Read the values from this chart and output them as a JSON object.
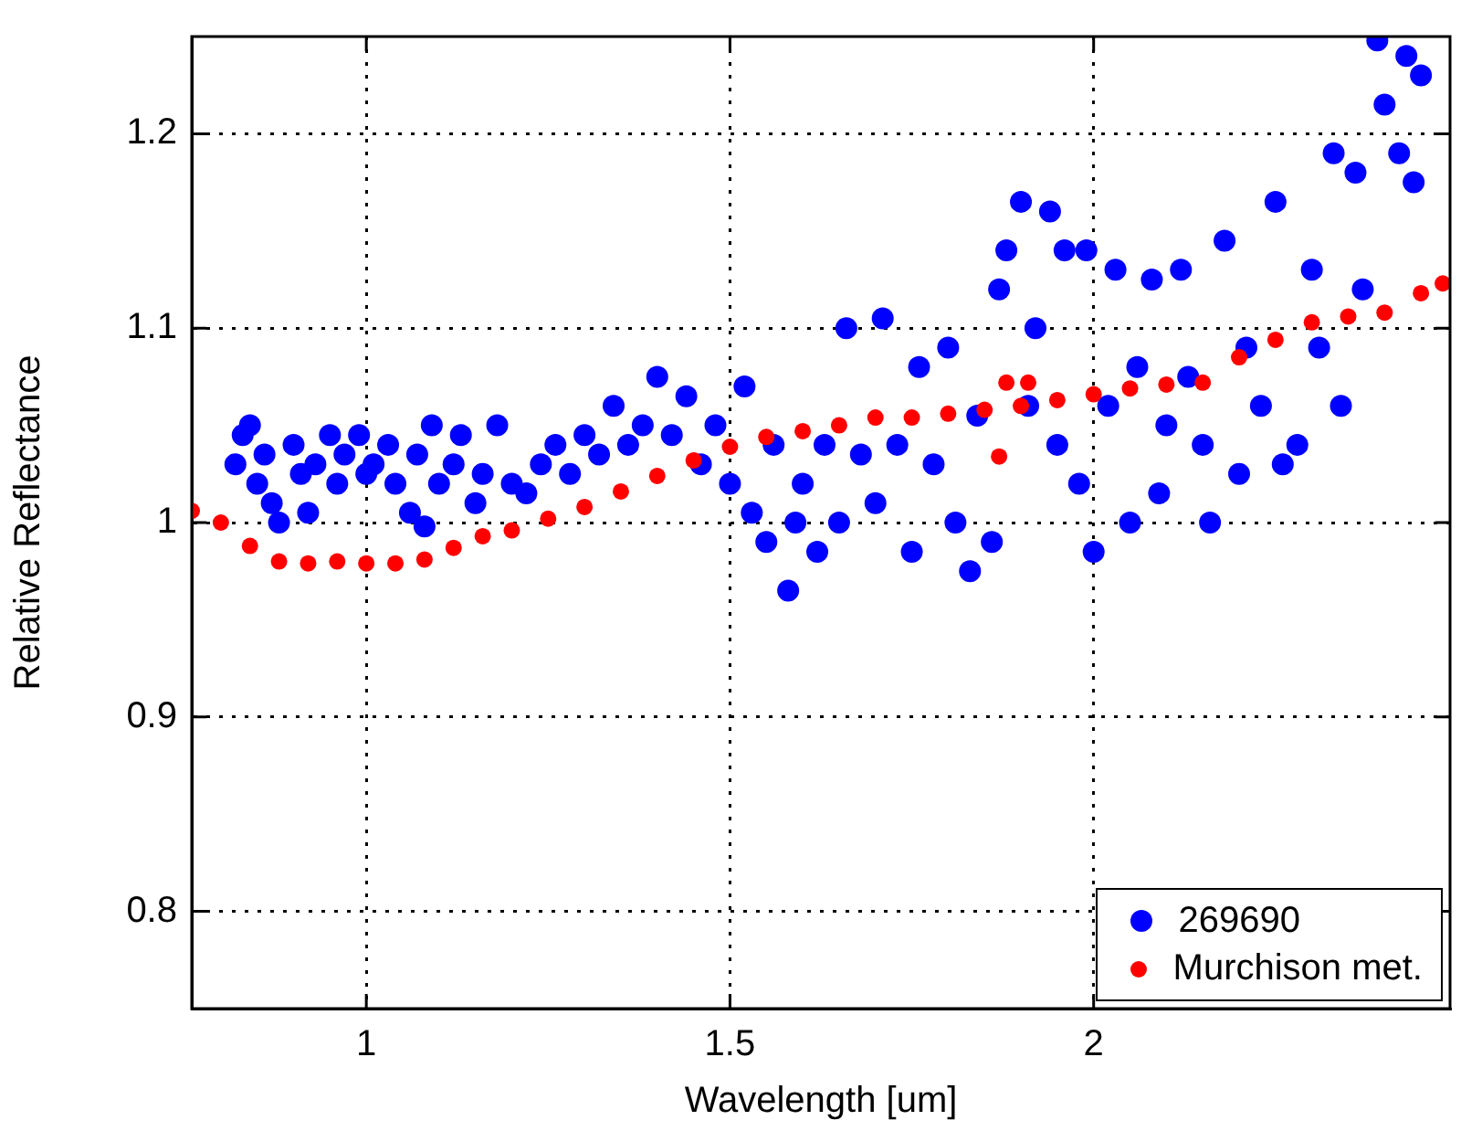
{
  "chart_data": {
    "type": "scatter",
    "xlabel": "Wavelength [um]",
    "ylabel": "Relative Reflectance",
    "xlim": [
      0.76,
      2.49
    ],
    "xticks": [
      1,
      1.5,
      2
    ],
    "ylim": [
      0.75,
      1.25
    ],
    "yticks": [
      0.8,
      0.9,
      1,
      1.1,
      1.2
    ],
    "grid": true,
    "legend": "bottom right",
    "marker": "circle",
    "series": [
      {
        "name": "269690",
        "color": "#0000ff",
        "x": [
          0.82,
          0.83,
          0.84,
          0.85,
          0.86,
          0.87,
          0.88,
          0.9,
          0.91,
          0.92,
          0.93,
          0.95,
          0.96,
          0.97,
          0.99,
          1.0,
          1.01,
          1.03,
          1.04,
          1.06,
          1.07,
          1.08,
          1.09,
          1.1,
          1.12,
          1.13,
          1.15,
          1.16,
          1.18,
          1.2,
          1.22,
          1.24,
          1.26,
          1.28,
          1.3,
          1.32,
          1.34,
          1.36,
          1.38,
          1.4,
          1.42,
          1.44,
          1.46,
          1.48,
          1.5,
          1.52,
          1.53,
          1.55,
          1.56,
          1.58,
          1.59,
          1.6,
          1.62,
          1.63,
          1.65,
          1.66,
          1.68,
          1.7,
          1.71,
          1.73,
          1.75,
          1.76,
          1.78,
          1.8,
          1.81,
          1.83,
          1.84,
          1.86,
          1.87,
          1.88,
          1.9,
          1.91,
          1.92,
          1.94,
          1.95,
          1.96,
          1.98,
          1.99,
          2.0,
          2.02,
          2.03,
          2.05,
          2.06,
          2.08,
          2.09,
          2.1,
          2.12,
          2.13,
          2.15,
          2.16,
          2.18,
          2.2,
          2.21,
          2.23,
          2.25,
          2.26,
          2.28,
          2.3,
          2.31,
          2.33,
          2.34,
          2.36,
          2.37,
          2.39,
          2.4,
          2.42,
          2.43,
          2.44,
          2.45
        ],
        "values": [
          1.03,
          1.045,
          1.05,
          1.02,
          1.035,
          1.01,
          1.0,
          1.04,
          1.025,
          1.005,
          1.03,
          1.045,
          1.02,
          1.035,
          1.045,
          1.025,
          1.03,
          1.04,
          1.02,
          1.005,
          1.035,
          0.998,
          1.05,
          1.02,
          1.03,
          1.045,
          1.01,
          1.025,
          1.05,
          1.02,
          1.015,
          1.03,
          1.04,
          1.025,
          1.045,
          1.035,
          1.06,
          1.04,
          1.05,
          1.075,
          1.045,
          1.065,
          1.03,
          1.05,
          1.02,
          1.07,
          1.005,
          0.99,
          1.04,
          0.965,
          1.0,
          1.02,
          0.985,
          1.04,
          1.0,
          1.1,
          1.035,
          1.01,
          1.105,
          1.04,
          0.985,
          1.08,
          1.03,
          1.09,
          1.0,
          0.975,
          1.055,
          0.99,
          1.12,
          1.14,
          1.165,
          1.06,
          1.1,
          1.16,
          1.04,
          1.14,
          1.02,
          1.14,
          0.985,
          1.06,
          1.13,
          1.0,
          1.08,
          1.125,
          1.015,
          1.05,
          1.13,
          1.075,
          1.04,
          1.0,
          1.145,
          1.025,
          1.09,
          1.06,
          1.165,
          1.03,
          1.04,
          1.13,
          1.09,
          1.19,
          1.06,
          1.18,
          1.12,
          1.248,
          1.215,
          1.19,
          1.24,
          1.175,
          1.23
        ]
      },
      {
        "name": "Murchison met.",
        "color": "#ff0000",
        "x": [
          0.76,
          0.8,
          0.84,
          0.88,
          0.92,
          0.96,
          1.0,
          1.04,
          1.08,
          1.12,
          1.16,
          1.2,
          1.25,
          1.3,
          1.35,
          1.4,
          1.45,
          1.5,
          1.55,
          1.6,
          1.65,
          1.7,
          1.75,
          1.8,
          1.85,
          1.87,
          1.88,
          1.9,
          1.91,
          1.95,
          2.0,
          2.05,
          2.1,
          2.15,
          2.2,
          2.25,
          2.3,
          2.35,
          2.4,
          2.45,
          2.48
        ],
        "values": [
          1.006,
          1.0,
          0.988,
          0.98,
          0.979,
          0.98,
          0.979,
          0.979,
          0.981,
          0.987,
          0.993,
          0.996,
          1.002,
          1.008,
          1.016,
          1.024,
          1.032,
          1.039,
          1.044,
          1.047,
          1.05,
          1.054,
          1.054,
          1.056,
          1.058,
          1.034,
          1.072,
          1.06,
          1.072,
          1.063,
          1.066,
          1.069,
          1.071,
          1.072,
          1.085,
          1.094,
          1.103,
          1.106,
          1.108,
          1.118,
          1.123
        ]
      }
    ]
  }
}
